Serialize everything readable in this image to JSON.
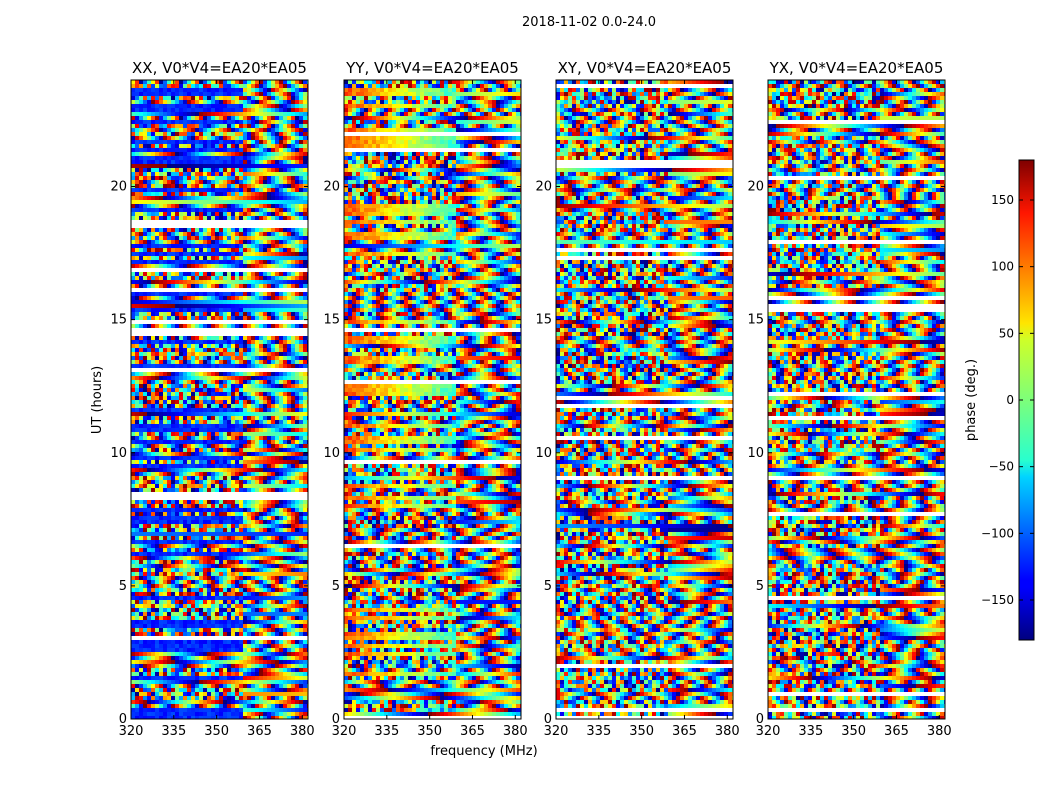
{
  "figure": {
    "suptitle": "2018-11-02 0.0-24.0"
  },
  "chart_data": {
    "type": "heatmap",
    "title": "2018-11-02 0.0-24.0",
    "xlabel": "frequency (MHz)",
    "ylabel": "UT (hours)",
    "xlim": [
      320,
      382
    ],
    "ylim": [
      0,
      24
    ],
    "xticks": [
      320,
      335,
      350,
      365,
      380
    ],
    "yticks": [
      0,
      5,
      10,
      15,
      20
    ],
    "panels": [
      {
        "title": "XX, V0*V4=EA20*EA05",
        "description_color": "phase"
      },
      {
        "title": "YY, V0*V4=EA20*EA05",
        "description_color": "phase"
      },
      {
        "title": "XY, V0*V4=EA20*EA05",
        "description_color": "phase"
      },
      {
        "title": "YX, V0*V4=EA20*EA05",
        "description_color": "phase"
      }
    ],
    "colorbar": {
      "label": "phase (deg.)",
      "vmin": -180,
      "vmax": 180,
      "ticks": [
        -150,
        -100,
        -50,
        0,
        50,
        100,
        150
      ],
      "tick_labels": [
        "−150",
        "−100",
        "−50",
        "0",
        "50",
        "100",
        "150"
      ],
      "colormap": "jet"
    }
  }
}
